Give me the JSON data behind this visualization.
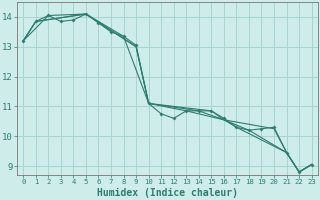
{
  "background_color": "#ceecea",
  "grid_color": "#a8d5d0",
  "line_color": "#2e7d6e",
  "marker_color": "#2e7d6e",
  "xlabel": "Humidex (Indice chaleur)",
  "xlim": [
    -0.5,
    23.5
  ],
  "ylim": [
    8.7,
    14.5
  ],
  "yticks": [
    9,
    10,
    11,
    12,
    13,
    14
  ],
  "xtick_labels": [
    "0",
    "1",
    "2",
    "3",
    "4",
    "5",
    "6",
    "7",
    "8",
    "9",
    "10",
    "11",
    "12",
    "13",
    "14",
    "15",
    "16",
    "17",
    "18",
    "19",
    "20",
    "21",
    "22",
    "23"
  ],
  "series1": [
    [
      0,
      13.2
    ],
    [
      1,
      13.85
    ],
    [
      2,
      14.05
    ],
    [
      3,
      13.85
    ],
    [
      4,
      13.9
    ],
    [
      5,
      14.1
    ],
    [
      6,
      13.8
    ],
    [
      7,
      13.5
    ],
    [
      8,
      13.35
    ],
    [
      9,
      13.05
    ],
    [
      10,
      11.1
    ],
    [
      11,
      10.75
    ],
    [
      12,
      10.6
    ],
    [
      13,
      10.85
    ],
    [
      14,
      10.85
    ],
    [
      15,
      10.85
    ],
    [
      16,
      10.6
    ],
    [
      17,
      10.3
    ],
    [
      18,
      10.2
    ],
    [
      19,
      10.25
    ],
    [
      20,
      10.3
    ],
    [
      21,
      9.45
    ],
    [
      22,
      8.8
    ],
    [
      23,
      9.05
    ]
  ],
  "series2": [
    [
      0,
      13.2
    ],
    [
      1,
      13.85
    ],
    [
      5,
      14.1
    ],
    [
      9,
      13.0
    ],
    [
      10,
      11.1
    ],
    [
      15,
      10.85
    ],
    [
      16,
      10.55
    ],
    [
      20,
      10.25
    ],
    [
      21,
      9.45
    ],
    [
      22,
      8.8
    ],
    [
      23,
      9.05
    ]
  ],
  "series3": [
    [
      0,
      13.2
    ],
    [
      2,
      14.05
    ],
    [
      5,
      14.1
    ],
    [
      9,
      13.0
    ],
    [
      10,
      11.1
    ],
    [
      13,
      10.85
    ],
    [
      16,
      10.55
    ],
    [
      18,
      10.2
    ],
    [
      21,
      9.45
    ],
    [
      22,
      8.8
    ],
    [
      23,
      9.05
    ]
  ],
  "series4": [
    [
      0,
      13.2
    ],
    [
      1,
      13.85
    ],
    [
      5,
      14.1
    ],
    [
      8,
      13.35
    ],
    [
      10,
      11.1
    ],
    [
      14,
      10.85
    ],
    [
      16,
      10.55
    ],
    [
      17,
      10.3
    ],
    [
      21,
      9.45
    ],
    [
      22,
      8.8
    ],
    [
      23,
      9.05
    ]
  ]
}
